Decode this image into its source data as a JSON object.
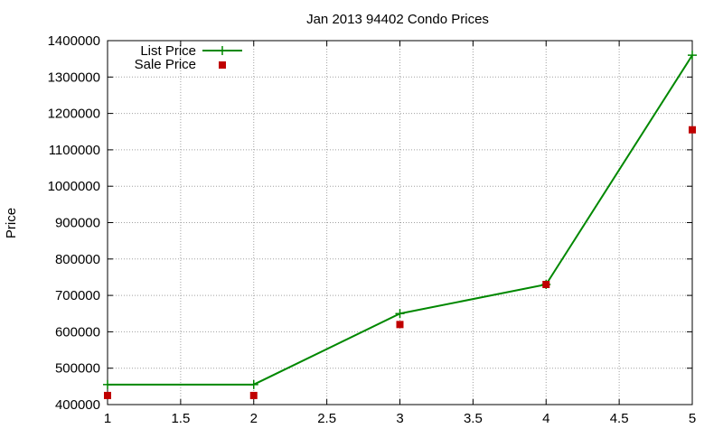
{
  "chart_data": {
    "type": "line",
    "title": "Jan 2013 94402 Condo Prices",
    "xlabel": "",
    "ylabel": "Price",
    "xlim": [
      1,
      5
    ],
    "ylim": [
      400000,
      1400000
    ],
    "xticks": [
      "1",
      "1.5",
      "2",
      "2.5",
      "3",
      "3.5",
      "4",
      "4.5",
      "5"
    ],
    "yticks": [
      "400000",
      "500000",
      "600000",
      "700000",
      "800000",
      "900000",
      "1000000",
      "1100000",
      "1200000",
      "1300000",
      "1400000"
    ],
    "grid": true,
    "legend_position": "top-left",
    "series": [
      {
        "name": "List Price",
        "style": "line+plus",
        "color": "#008800",
        "x": [
          1,
          2,
          3,
          4,
          5
        ],
        "y": [
          455000,
          455000,
          650000,
          730000,
          1360000
        ]
      },
      {
        "name": "Sale Price",
        "style": "square",
        "color": "#c00000",
        "x": [
          1,
          2,
          3,
          4,
          5
        ],
        "y": [
          425000,
          425000,
          620000,
          730000,
          1155000
        ]
      }
    ]
  }
}
